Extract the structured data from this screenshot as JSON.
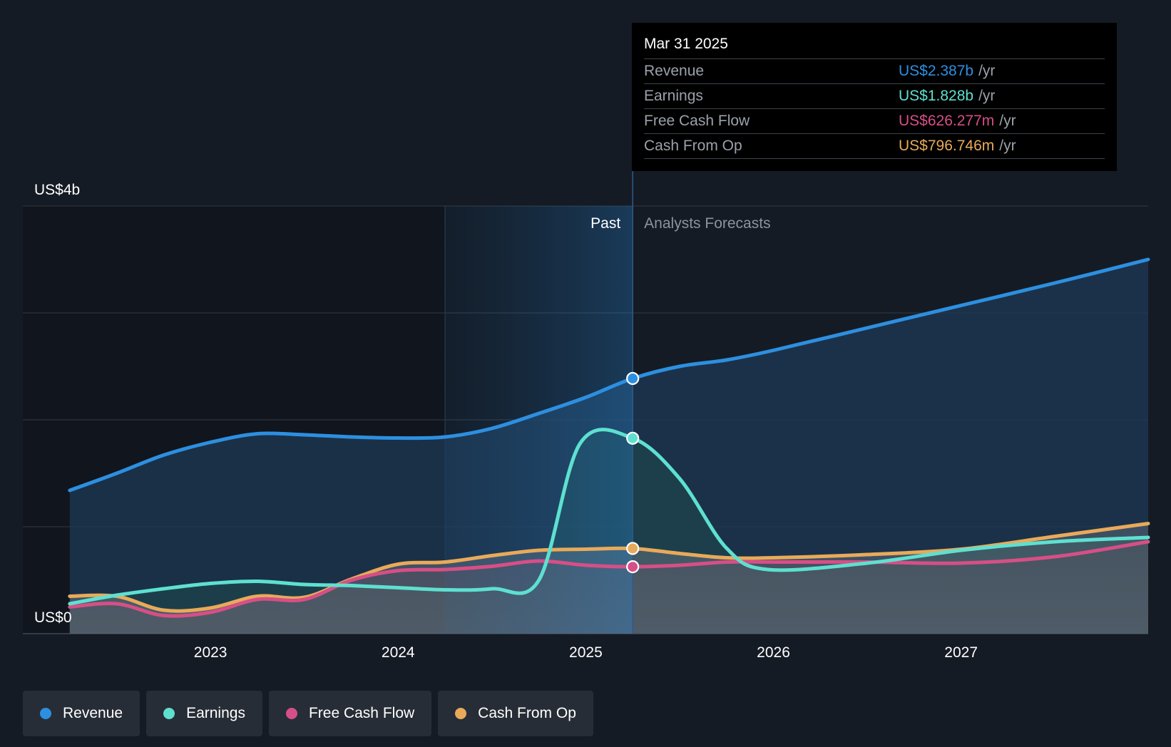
{
  "tooltip": {
    "date": "Mar 31 2025",
    "rows": [
      {
        "label": "Revenue",
        "value": "US$2.387b",
        "unit": "/yr",
        "color": "#2d8fe0"
      },
      {
        "label": "Earnings",
        "value": "US$1.828b",
        "unit": "/yr",
        "color": "#5ee0d0"
      },
      {
        "label": "Free Cash Flow",
        "value": "US$626.277m",
        "unit": "/yr",
        "color": "#d64f86"
      },
      {
        "label": "Cash From Op",
        "value": "US$796.746m",
        "unit": "/yr",
        "color": "#e8aa5a"
      }
    ]
  },
  "legend": [
    {
      "label": "Revenue",
      "color": "#2d8fe0"
    },
    {
      "label": "Earnings",
      "color": "#5ee0d0"
    },
    {
      "label": "Free Cash Flow",
      "color": "#d64f86"
    },
    {
      "label": "Cash From Op",
      "color": "#e8aa5a"
    }
  ],
  "chart_data": {
    "type": "area",
    "y_top_label": "US$4b",
    "y_bottom_label": "US$0",
    "ylim": [
      0,
      4
    ],
    "xlim": [
      2022.0,
      2027.997
    ],
    "x_ticks": [
      2023,
      2024,
      2025,
      2026,
      2027
    ],
    "x_tick_labels": [
      "2023",
      "2024",
      "2025",
      "2026",
      "2027"
    ],
    "past_label": "Past",
    "forecast_label": "Analysts Forecasts",
    "highlight_start": 2024.25,
    "past_end": 2025.25,
    "grid": true,
    "series": [
      {
        "name": "Revenue",
        "color": "#2d8fe0",
        "points": [
          [
            2022.25,
            1.34
          ],
          [
            2022.5,
            1.5
          ],
          [
            2022.75,
            1.67
          ],
          [
            2023.0,
            1.79
          ],
          [
            2023.25,
            1.87
          ],
          [
            2023.5,
            1.86
          ],
          [
            2023.75,
            1.84
          ],
          [
            2024.0,
            1.83
          ],
          [
            2024.25,
            1.84
          ],
          [
            2024.5,
            1.92
          ],
          [
            2024.75,
            2.06
          ],
          [
            2025.0,
            2.21
          ],
          [
            2025.25,
            2.387
          ],
          [
            2025.5,
            2.5
          ],
          [
            2025.75,
            2.56
          ],
          [
            2026.0,
            2.65
          ],
          [
            2026.5,
            2.86
          ],
          [
            2027.0,
            3.07
          ],
          [
            2027.5,
            3.28
          ],
          [
            2027.997,
            3.5
          ]
        ]
      },
      {
        "name": "Earnings",
        "color": "#5ee0d0",
        "points": [
          [
            2022.25,
            0.28
          ],
          [
            2022.5,
            0.36
          ],
          [
            2022.75,
            0.42
          ],
          [
            2023.0,
            0.47
          ],
          [
            2023.25,
            0.49
          ],
          [
            2023.5,
            0.46
          ],
          [
            2023.75,
            0.45
          ],
          [
            2024.0,
            0.43
          ],
          [
            2024.25,
            0.41
          ],
          [
            2024.5,
            0.42
          ],
          [
            2024.75,
            0.5
          ],
          [
            2024.97,
            1.78
          ],
          [
            2025.25,
            1.828
          ],
          [
            2025.5,
            1.45
          ],
          [
            2025.75,
            0.8
          ],
          [
            2025.97,
            0.6
          ],
          [
            2026.5,
            0.66
          ],
          [
            2027.0,
            0.78
          ],
          [
            2027.5,
            0.86
          ],
          [
            2027.997,
            0.9
          ]
        ]
      },
      {
        "name": "Free Cash Flow",
        "color": "#d64f86",
        "points": [
          [
            2022.25,
            0.25
          ],
          [
            2022.5,
            0.28
          ],
          [
            2022.75,
            0.17
          ],
          [
            2023.0,
            0.2
          ],
          [
            2023.25,
            0.32
          ],
          [
            2023.5,
            0.32
          ],
          [
            2023.75,
            0.5
          ],
          [
            2024.0,
            0.59
          ],
          [
            2024.25,
            0.6
          ],
          [
            2024.5,
            0.63
          ],
          [
            2024.75,
            0.68
          ],
          [
            2025.0,
            0.64
          ],
          [
            2025.25,
            0.626
          ],
          [
            2025.5,
            0.64
          ],
          [
            2025.75,
            0.67
          ],
          [
            2026.0,
            0.67
          ],
          [
            2026.5,
            0.67
          ],
          [
            2027.0,
            0.66
          ],
          [
            2027.5,
            0.72
          ],
          [
            2027.997,
            0.86
          ]
        ]
      },
      {
        "name": "Cash From Op",
        "color": "#e8aa5a",
        "points": [
          [
            2022.25,
            0.35
          ],
          [
            2022.5,
            0.35
          ],
          [
            2022.75,
            0.22
          ],
          [
            2023.0,
            0.24
          ],
          [
            2023.25,
            0.35
          ],
          [
            2023.5,
            0.34
          ],
          [
            2023.75,
            0.51
          ],
          [
            2024.0,
            0.65
          ],
          [
            2024.25,
            0.67
          ],
          [
            2024.5,
            0.73
          ],
          [
            2024.75,
            0.78
          ],
          [
            2025.0,
            0.79
          ],
          [
            2025.25,
            0.797
          ],
          [
            2025.5,
            0.75
          ],
          [
            2025.75,
            0.71
          ],
          [
            2026.0,
            0.71
          ],
          [
            2026.5,
            0.74
          ],
          [
            2027.0,
            0.79
          ],
          [
            2027.5,
            0.91
          ],
          [
            2027.997,
            1.03
          ]
        ]
      }
    ]
  }
}
